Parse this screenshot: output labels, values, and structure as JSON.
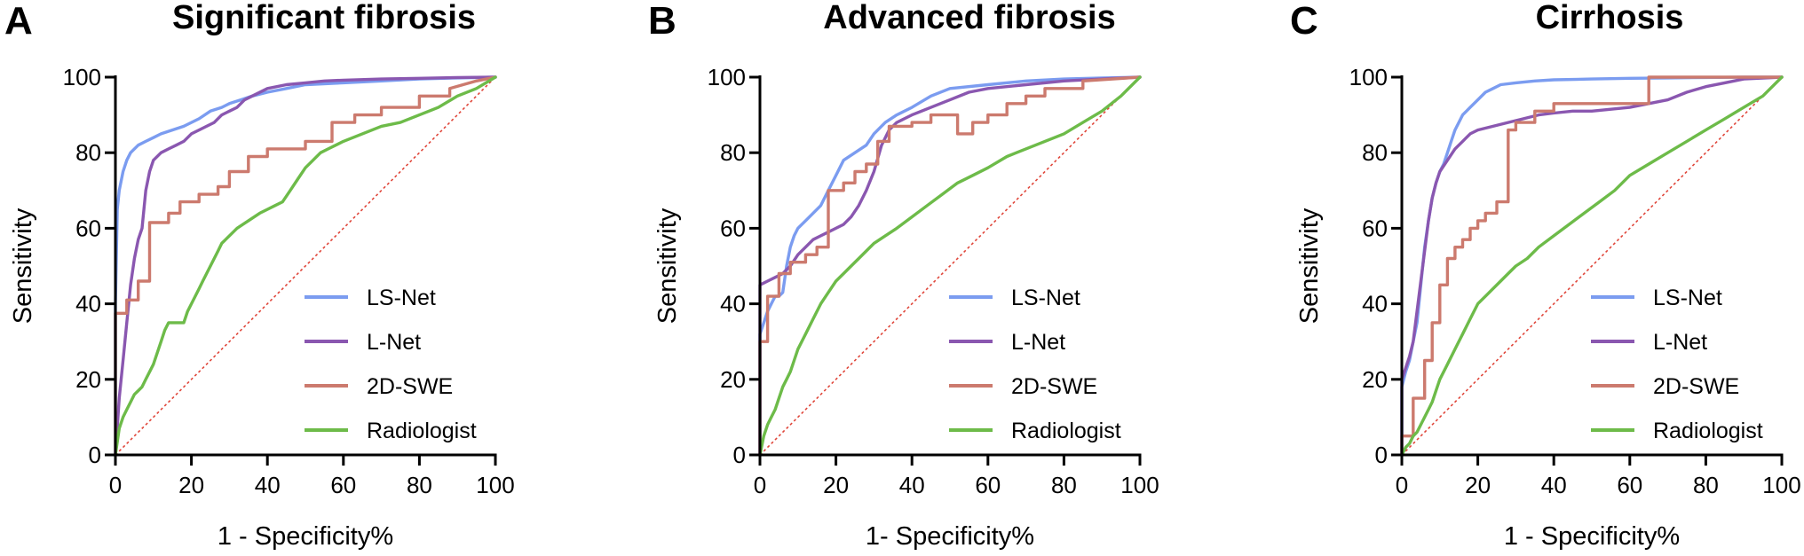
{
  "colors": {
    "LS-Net": "#7b9cf0",
    "L-Net": "#8a57b0",
    "2D-SWE": "#cc7a6e",
    "Radiologist": "#6dbb49",
    "reference": "#e0463a"
  },
  "chart_data": [
    {
      "type": "line",
      "panel": "A",
      "title": "Significant fibrosis",
      "xlabel": "1 - Specificity%",
      "ylabel": "Sensitivity",
      "xlim": [
        0,
        100
      ],
      "ylim": [
        0,
        100
      ],
      "xticks": [
        0,
        20,
        40,
        60,
        80,
        100
      ],
      "yticks": [
        0,
        20,
        40,
        60,
        80,
        100
      ],
      "grid": false,
      "legend_position": "bottom-right",
      "reference_line": [
        [
          0,
          0
        ],
        [
          100,
          100
        ]
      ],
      "series": [
        {
          "name": "LS-Net",
          "x": [
            0,
            0,
            0.5,
            1,
            2,
            3,
            4,
            5,
            6,
            8,
            10,
            12,
            15,
            18,
            20,
            22,
            25,
            28,
            30,
            33,
            36,
            40,
            45,
            50,
            60,
            70,
            80,
            90,
            100
          ],
          "y": [
            0,
            40,
            65,
            70,
            75,
            78,
            80,
            81,
            82,
            83,
            84,
            85,
            86,
            87,
            88,
            89,
            91,
            92,
            93,
            94,
            95,
            96,
            97,
            98,
            98.5,
            99,
            99.5,
            99.8,
            100
          ]
        },
        {
          "name": "L-Net",
          "x": [
            0,
            1,
            2,
            3,
            4,
            5,
            6,
            7,
            8,
            9,
            10,
            12,
            14,
            16,
            18,
            20,
            22,
            24,
            26,
            28,
            30,
            32,
            34,
            36,
            40,
            45,
            50,
            55,
            60,
            70,
            80,
            90,
            100
          ],
          "y": [
            0,
            15,
            25,
            35,
            45,
            52,
            57,
            60,
            70,
            75,
            78,
            80,
            81,
            82,
            83,
            85,
            86,
            87,
            88,
            90,
            91,
            92,
            94,
            95,
            97,
            98,
            98.5,
            99,
            99.2,
            99.5,
            99.7,
            99.9,
            100
          ]
        },
        {
          "name": "2D-SWE",
          "x": [
            0,
            0,
            3,
            3,
            6,
            6,
            9,
            9,
            14,
            14,
            17,
            17,
            22,
            22,
            27,
            27,
            30,
            30,
            35,
            35,
            40,
            40,
            50,
            50,
            57,
            57,
            63,
            63,
            70,
            70,
            80,
            80,
            88,
            88,
            95,
            100
          ],
          "y": [
            0,
            37.5,
            37.5,
            41,
            41,
            46,
            46,
            61.5,
            61.5,
            64,
            64,
            67,
            67,
            69,
            69,
            71,
            71,
            75,
            75,
            79,
            79,
            81,
            81,
            83,
            83,
            88,
            88,
            90,
            90,
            92,
            92,
            95,
            95,
            97,
            99,
            100
          ]
        },
        {
          "name": "Radiologist",
          "x": [
            0,
            1,
            2,
            3,
            4,
            5,
            6,
            7,
            8,
            9,
            10,
            11,
            12,
            13,
            14,
            16,
            18,
            19,
            20,
            21,
            22,
            23,
            24,
            25,
            26,
            27,
            28,
            29,
            30,
            32,
            35,
            38,
            40,
            42,
            44,
            46,
            48,
            50,
            52,
            54,
            56,
            58,
            60,
            65,
            70,
            75,
            80,
            85,
            90,
            95,
            100
          ],
          "y": [
            0,
            7,
            10,
            12,
            14,
            16,
            17,
            18,
            20,
            22,
            24,
            27,
            30,
            33,
            35,
            35,
            35,
            38,
            40,
            42,
            44,
            46,
            48,
            50,
            52,
            54,
            56,
            57,
            58,
            60,
            62,
            64,
            65,
            66,
            67,
            70,
            73,
            76,
            78,
            80,
            81,
            82,
            83,
            85,
            87,
            88,
            90,
            92,
            95,
            97,
            100
          ]
        }
      ]
    },
    {
      "type": "line",
      "panel": "B",
      "title": "Advanced fibrosis",
      "xlabel": "1- Specificity%",
      "ylabel": "Sensitivity",
      "xlim": [
        0,
        100
      ],
      "ylim": [
        0,
        100
      ],
      "xticks": [
        0,
        20,
        40,
        60,
        80,
        100
      ],
      "yticks": [
        0,
        20,
        40,
        60,
        80,
        100
      ],
      "grid": false,
      "legend_position": "bottom-right",
      "reference_line": [
        [
          0,
          0
        ],
        [
          100,
          100
        ]
      ],
      "series": [
        {
          "name": "LS-Net",
          "x": [
            0,
            0,
            1,
            2,
            3,
            4,
            5,
            6,
            7,
            8,
            9,
            10,
            12,
            14,
            16,
            18,
            20,
            22,
            25,
            28,
            30,
            33,
            36,
            40,
            45,
            50,
            60,
            70,
            80,
            90,
            100
          ],
          "y": [
            0,
            32,
            35,
            38,
            40,
            42,
            42,
            43,
            50,
            55,
            58,
            60,
            62,
            64,
            66,
            70,
            74,
            78,
            80,
            82,
            85,
            88,
            90,
            92,
            95,
            97,
            98,
            99,
            99.5,
            99.8,
            100
          ]
        },
        {
          "name": "L-Net",
          "x": [
            0,
            0,
            2,
            4,
            6,
            8,
            10,
            12,
            14,
            16,
            18,
            20,
            22,
            24,
            26,
            28,
            30,
            32,
            34,
            36,
            38,
            40,
            45,
            50,
            55,
            60,
            70,
            80,
            90,
            100
          ],
          "y": [
            0,
            45,
            46,
            47,
            48,
            50,
            53,
            55,
            57,
            58,
            59,
            60,
            61,
            63,
            66,
            70,
            75,
            82,
            86,
            88,
            89,
            90,
            92,
            94,
            96,
            97,
            98,
            99,
            99.5,
            100
          ]
        },
        {
          "name": "2D-SWE",
          "x": [
            0,
            0,
            2,
            2,
            5,
            5,
            8,
            8,
            12,
            12,
            15,
            15,
            18,
            18,
            22,
            22,
            25,
            25,
            28,
            28,
            31,
            31,
            34,
            34,
            40,
            40,
            45,
            45,
            52,
            52,
            56,
            56,
            60,
            60,
            65,
            65,
            70,
            70,
            75,
            75,
            85,
            85,
            100
          ],
          "y": [
            0,
            30,
            30,
            42,
            42,
            48,
            48,
            51,
            51,
            53,
            53,
            55,
            55,
            70,
            70,
            72,
            72,
            75,
            75,
            77,
            77,
            83,
            83,
            87,
            87,
            88,
            88,
            90,
            90,
            85,
            85,
            88,
            88,
            90,
            90,
            93,
            93,
            95,
            95,
            97,
            97,
            99,
            100
          ]
        },
        {
          "name": "Radiologist",
          "x": [
            0,
            1,
            2,
            3,
            4,
            5,
            6,
            7,
            8,
            9,
            10,
            12,
            14,
            16,
            18,
            20,
            22,
            24,
            26,
            28,
            30,
            33,
            36,
            40,
            44,
            48,
            52,
            56,
            60,
            65,
            70,
            75,
            80,
            85,
            90,
            95,
            100
          ],
          "y": [
            0,
            5,
            8,
            10,
            12,
            15,
            18,
            20,
            22,
            25,
            28,
            32,
            36,
            40,
            43,
            46,
            48,
            50,
            52,
            54,
            56,
            58,
            60,
            63,
            66,
            69,
            72,
            74,
            76,
            79,
            81,
            83,
            85,
            88,
            91,
            95,
            100
          ]
        }
      ]
    },
    {
      "type": "line",
      "panel": "C",
      "title": "Cirrhosis",
      "xlabel": "1 - Specificity%",
      "ylabel": "Sensitivity",
      "xlim": [
        0,
        100
      ],
      "ylim": [
        0,
        100
      ],
      "xticks": [
        0,
        20,
        40,
        60,
        80,
        100
      ],
      "yticks": [
        0,
        20,
        40,
        60,
        80,
        100
      ],
      "grid": false,
      "legend_position": "bottom-right",
      "reference_line": [
        [
          0,
          0
        ],
        [
          100,
          100
        ]
      ],
      "series": [
        {
          "name": "LS-Net",
          "x": [
            0,
            0,
            1,
            2,
            3,
            4,
            5,
            6,
            7,
            8,
            9,
            10,
            11,
            12,
            13,
            14,
            15,
            16,
            18,
            20,
            22,
            24,
            26,
            30,
            35,
            40,
            50,
            60,
            70,
            80,
            90,
            100
          ],
          "y": [
            0,
            18,
            22,
            25,
            30,
            35,
            45,
            55,
            62,
            68,
            72,
            75,
            77,
            80,
            83,
            86,
            88,
            90,
            92,
            94,
            96,
            97,
            98,
            98.5,
            99,
            99.3,
            99.5,
            99.7,
            99.8,
            99.9,
            100,
            100
          ]
        },
        {
          "name": "L-Net",
          "x": [
            0,
            0,
            1,
            2,
            3,
            4,
            5,
            6,
            7,
            8,
            9,
            10,
            12,
            14,
            16,
            18,
            20,
            24,
            28,
            32,
            36,
            40,
            45,
            50,
            55,
            60,
            65,
            70,
            75,
            80,
            85,
            90,
            100
          ],
          "y": [
            0,
            20,
            23,
            26,
            30,
            38,
            46,
            54,
            62,
            68,
            72,
            75,
            78,
            81,
            83,
            85,
            86,
            87,
            88,
            89,
            90,
            90.5,
            91,
            91,
            91.5,
            92,
            93,
            94,
            96,
            97.5,
            98.5,
            99.5,
            100
          ]
        },
        {
          "name": "2D-SWE",
          "x": [
            0,
            0,
            3,
            3,
            6,
            6,
            8,
            8,
            10,
            10,
            12,
            12,
            14,
            14,
            16,
            16,
            18,
            18,
            20,
            20,
            22,
            22,
            25,
            25,
            28,
            28,
            30,
            30,
            35,
            35,
            40,
            40,
            65,
            65,
            100
          ],
          "y": [
            0,
            5,
            5,
            15,
            15,
            25,
            25,
            35,
            35,
            45,
            45,
            52,
            52,
            55,
            55,
            57,
            57,
            60,
            60,
            62,
            62,
            64,
            64,
            67,
            67,
            86,
            86,
            88,
            88,
            91,
            91,
            93,
            93,
            100,
            100
          ]
        },
        {
          "name": "Radiologist",
          "x": [
            0,
            1,
            2,
            3,
            4,
            5,
            6,
            7,
            8,
            9,
            10,
            12,
            14,
            16,
            18,
            20,
            22,
            24,
            26,
            28,
            30,
            33,
            36,
            40,
            44,
            48,
            52,
            56,
            60,
            65,
            70,
            75,
            80,
            85,
            90,
            95,
            100
          ],
          "y": [
            0,
            2,
            3,
            5,
            6,
            8,
            10,
            12,
            14,
            17,
            20,
            24,
            28,
            32,
            36,
            40,
            42,
            44,
            46,
            48,
            50,
            52,
            55,
            58,
            61,
            64,
            67,
            70,
            74,
            77,
            80,
            83,
            86,
            89,
            92,
            95,
            100
          ]
        }
      ]
    }
  ]
}
